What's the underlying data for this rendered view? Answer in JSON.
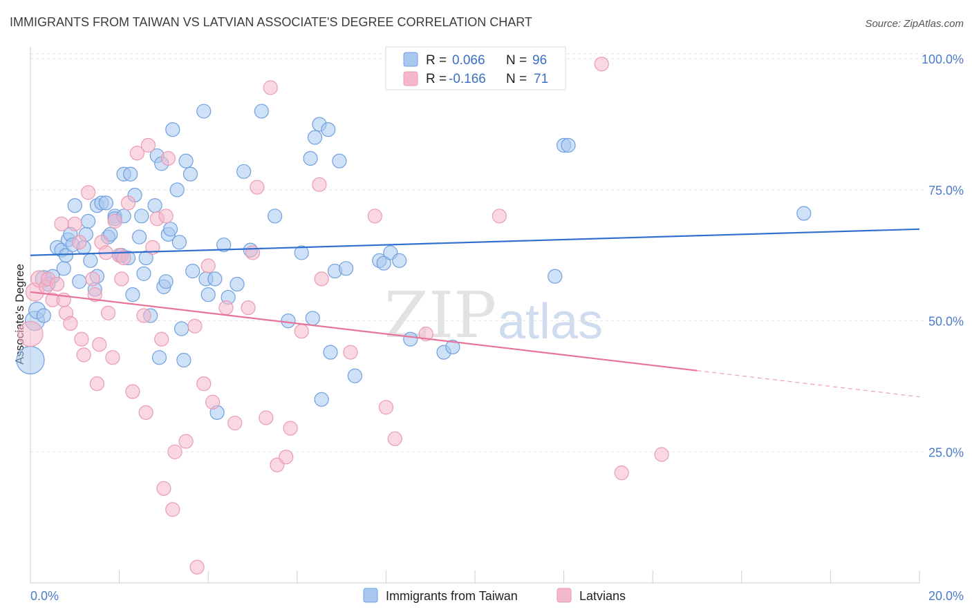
{
  "header": {
    "title": "IMMIGRANTS FROM TAIWAN VS LATVIAN ASSOCIATE'S DEGREE CORRELATION CHART",
    "source": "Source: ZipAtlas.com"
  },
  "watermark": {
    "zip": "ZIP",
    "atlas": "atlas"
  },
  "legend": {
    "rows": [
      {
        "r_label": "R =",
        "r_value": "0.066",
        "n_label": "N =",
        "n_value": "96",
        "color": "#a8c8f0"
      },
      {
        "r_label": "R =",
        "r_value": "-0.166",
        "n_label": "N =",
        "n_value": "71",
        "color": "#f5b8ca"
      }
    ]
  },
  "bottom_legend": {
    "items": [
      {
        "label": "Immigrants from Taiwan",
        "color": "#a8c8f0"
      },
      {
        "label": "Latvians",
        "color": "#f5b8ca"
      }
    ]
  },
  "chart_data": {
    "type": "scatter",
    "title": "IMMIGRANTS FROM TAIWAN VS LATVIAN ASSOCIATE'S DEGREE CORRELATION CHART",
    "xlabel": "",
    "ylabel": "Associate's Degree",
    "xlim": [
      0,
      20
    ],
    "ylim": [
      0,
      102
    ],
    "x_tick_labels": [
      "0.0%",
      "20.0%"
    ],
    "y_ticks": [
      25,
      50,
      75,
      100
    ],
    "y_tick_labels": [
      "25.0%",
      "50.0%",
      "75.0%",
      "100.0%"
    ],
    "grid": true,
    "legend_position": "top-center",
    "series": [
      {
        "name": "Immigrants from Taiwan",
        "color": "#6f9fe0",
        "fill": "#a8c8f0",
        "trend": {
          "x": [
            0,
            20
          ],
          "y": [
            62.5,
            67.5
          ],
          "color": "#2f6fd0"
        },
        "points": [
          [
            0.0,
            42.5,
            20
          ],
          [
            0.1,
            50,
            14
          ],
          [
            0.15,
            52,
            12
          ],
          [
            0.3,
            51,
            10
          ],
          [
            0.3,
            58,
            12
          ],
          [
            0.4,
            57,
            10
          ],
          [
            0.5,
            58.5,
            10
          ],
          [
            0.6,
            64,
            10
          ],
          [
            0.7,
            63.5,
            10
          ],
          [
            0.75,
            60,
            10
          ],
          [
            0.8,
            62.5,
            10
          ],
          [
            0.85,
            65.5,
            10
          ],
          [
            0.9,
            66.5,
            10
          ],
          [
            0.95,
            64.5,
            10
          ],
          [
            1.0,
            72,
            10
          ],
          [
            1.1,
            57.5,
            10
          ],
          [
            1.2,
            64,
            10
          ],
          [
            1.25,
            66.5,
            10
          ],
          [
            1.3,
            69,
            10
          ],
          [
            1.35,
            61.5,
            10
          ],
          [
            1.45,
            56,
            10
          ],
          [
            1.5,
            58.5,
            10
          ],
          [
            1.5,
            72,
            10
          ],
          [
            1.6,
            72.5,
            10
          ],
          [
            1.7,
            72.5,
            10
          ],
          [
            1.75,
            66,
            10
          ],
          [
            1.8,
            66.5,
            10
          ],
          [
            1.9,
            70,
            10
          ],
          [
            1.9,
            69.5,
            10
          ],
          [
            2.0,
            62.5,
            10
          ],
          [
            2.05,
            62.5,
            10
          ],
          [
            2.1,
            70,
            10
          ],
          [
            2.1,
            78,
            10
          ],
          [
            2.2,
            62,
            10
          ],
          [
            2.25,
            78,
            10
          ],
          [
            2.3,
            55,
            10
          ],
          [
            2.35,
            74,
            10
          ],
          [
            2.45,
            66,
            10
          ],
          [
            2.5,
            70,
            10
          ],
          [
            2.55,
            59,
            10
          ],
          [
            2.6,
            62,
            10
          ],
          [
            2.7,
            51,
            10
          ],
          [
            2.8,
            72,
            10
          ],
          [
            2.85,
            81.5,
            10
          ],
          [
            2.9,
            43,
            10
          ],
          [
            2.95,
            80,
            10
          ],
          [
            3.0,
            56.5,
            10
          ],
          [
            3.05,
            57.5,
            10
          ],
          [
            3.1,
            66.5,
            10
          ],
          [
            3.15,
            67.5,
            10
          ],
          [
            3.2,
            86.5,
            10
          ],
          [
            3.3,
            75,
            10
          ],
          [
            3.35,
            65,
            10
          ],
          [
            3.4,
            48.5,
            10
          ],
          [
            3.45,
            42.5,
            10
          ],
          [
            3.5,
            80.5,
            10
          ],
          [
            3.6,
            78,
            10
          ],
          [
            3.65,
            59.5,
            10
          ],
          [
            3.9,
            90,
            10
          ],
          [
            3.95,
            58,
            10
          ],
          [
            4.0,
            55,
            10
          ],
          [
            4.15,
            58,
            10
          ],
          [
            4.2,
            32.5,
            10
          ],
          [
            4.35,
            64.5,
            10
          ],
          [
            4.45,
            54.5,
            10
          ],
          [
            4.65,
            57,
            10
          ],
          [
            4.8,
            78.5,
            10
          ],
          [
            4.95,
            63.5,
            10
          ],
          [
            5.2,
            90,
            10
          ],
          [
            5.5,
            70,
            10
          ],
          [
            5.8,
            50,
            10
          ],
          [
            6.1,
            63,
            10
          ],
          [
            6.3,
            81,
            10
          ],
          [
            6.35,
            50.5,
            10
          ],
          [
            6.4,
            85,
            10
          ],
          [
            6.5,
            87.5,
            10
          ],
          [
            6.55,
            35,
            10
          ],
          [
            6.7,
            86.5,
            10
          ],
          [
            6.75,
            44,
            10
          ],
          [
            6.85,
            59.5,
            10
          ],
          [
            6.95,
            80.5,
            10
          ],
          [
            7.1,
            60,
            10
          ],
          [
            7.3,
            39.5,
            10
          ],
          [
            7.85,
            61.5,
            10
          ],
          [
            7.95,
            61,
            10
          ],
          [
            8.1,
            63,
            10
          ],
          [
            8.3,
            61.5,
            10
          ],
          [
            8.55,
            46.5,
            10
          ],
          [
            9.3,
            44,
            10
          ],
          [
            9.5,
            45,
            10
          ],
          [
            11.8,
            58.5,
            10
          ],
          [
            12.0,
            83.5,
            10
          ],
          [
            12.1,
            83.5,
            10
          ],
          [
            17.4,
            70.5,
            10
          ]
        ]
      },
      {
        "name": "Latvians",
        "color": "#ea9ab2",
        "fill": "#f5b8ca",
        "trend": {
          "x": [
            0,
            15
          ],
          "y": [
            55.5,
            40.5
          ],
          "dashed_to": [
            20,
            35.5
          ],
          "color": "#e8739a"
        },
        "points": [
          [
            0.0,
            47.5,
            18
          ],
          [
            0.1,
            55.5,
            13
          ],
          [
            0.2,
            58,
            12
          ],
          [
            0.35,
            56.5,
            10
          ],
          [
            0.4,
            58,
            10
          ],
          [
            0.5,
            54,
            10
          ],
          [
            0.6,
            57,
            10
          ],
          [
            0.7,
            68.5,
            10
          ],
          [
            0.75,
            54,
            10
          ],
          [
            0.8,
            51.5,
            10
          ],
          [
            0.9,
            49.5,
            10
          ],
          [
            1.0,
            68.5,
            10
          ],
          [
            1.1,
            65,
            10
          ],
          [
            1.15,
            46.5,
            10
          ],
          [
            1.2,
            43.5,
            10
          ],
          [
            1.3,
            74.5,
            10
          ],
          [
            1.4,
            58,
            10
          ],
          [
            1.45,
            55,
            10
          ],
          [
            1.5,
            38,
            10
          ],
          [
            1.55,
            45.5,
            10
          ],
          [
            1.6,
            65,
            10
          ],
          [
            1.7,
            63,
            10
          ],
          [
            1.75,
            51.5,
            10
          ],
          [
            1.85,
            43,
            10
          ],
          [
            1.9,
            69,
            10
          ],
          [
            2.0,
            62.5,
            10
          ],
          [
            2.05,
            58,
            10
          ],
          [
            2.1,
            62,
            10
          ],
          [
            2.2,
            72.5,
            10
          ],
          [
            2.3,
            36.5,
            10
          ],
          [
            2.4,
            82,
            10
          ],
          [
            2.55,
            51,
            10
          ],
          [
            2.6,
            32.5,
            10
          ],
          [
            2.65,
            83.5,
            10
          ],
          [
            2.75,
            64,
            10
          ],
          [
            2.85,
            69.5,
            10
          ],
          [
            2.95,
            46.5,
            10
          ],
          [
            3.0,
            18,
            10
          ],
          [
            3.05,
            70,
            10
          ],
          [
            3.1,
            81,
            10
          ],
          [
            3.2,
            14,
            10
          ],
          [
            3.25,
            25,
            10
          ],
          [
            3.5,
            27,
            10
          ],
          [
            3.7,
            49,
            10
          ],
          [
            3.75,
            3,
            10
          ],
          [
            3.9,
            38,
            10
          ],
          [
            4.0,
            60.5,
            10
          ],
          [
            4.1,
            34.5,
            10
          ],
          [
            4.4,
            52.5,
            10
          ],
          [
            4.6,
            30.5,
            10
          ],
          [
            4.9,
            52.5,
            10
          ],
          [
            5.0,
            63,
            10
          ],
          [
            5.1,
            75.5,
            10
          ],
          [
            5.3,
            31.5,
            10
          ],
          [
            5.4,
            94.5,
            10
          ],
          [
            5.55,
            22.5,
            10
          ],
          [
            5.75,
            24,
            10
          ],
          [
            5.85,
            29.5,
            10
          ],
          [
            6.1,
            48,
            10
          ],
          [
            6.5,
            76,
            10
          ],
          [
            6.55,
            58,
            10
          ],
          [
            7.2,
            44,
            10
          ],
          [
            7.75,
            70,
            10
          ],
          [
            8.0,
            33.5,
            10
          ],
          [
            8.2,
            27.5,
            10
          ],
          [
            8.9,
            47.5,
            10
          ],
          [
            10.55,
            70,
            10
          ],
          [
            12.85,
            99,
            10
          ],
          [
            13.3,
            21,
            10
          ],
          [
            14.2,
            24.5,
            10
          ]
        ]
      }
    ]
  }
}
